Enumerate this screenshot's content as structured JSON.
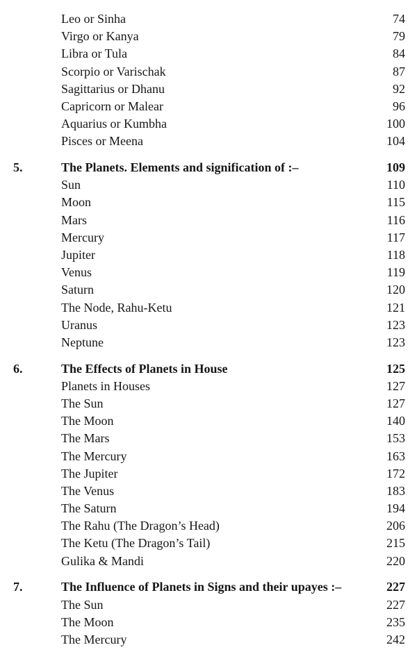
{
  "toc": [
    {
      "num": "",
      "title": "Leo or Sinha",
      "page": "74"
    },
    {
      "num": "",
      "title": "Virgo or Kanya",
      "page": "79"
    },
    {
      "num": "",
      "title": "Libra or Tula",
      "page": "84"
    },
    {
      "num": "",
      "title": "Scorpio or Varischak",
      "page": "87"
    },
    {
      "num": "",
      "title": "Sagittarius or Dhanu",
      "page": "92"
    },
    {
      "num": "",
      "title": "Capricorn or Malear",
      "page": "96"
    },
    {
      "num": "",
      "title": "Aquarius or Kumbha",
      "page": "100"
    },
    {
      "num": "",
      "title": "Pisces or Meena",
      "page": "104"
    },
    {
      "num": "5.",
      "title": "The Planets.  Elements and signification of :–",
      "page": "109",
      "section": true
    },
    {
      "num": "",
      "title": "Sun",
      "page": "110"
    },
    {
      "num": "",
      "title": "Moon",
      "page": "115"
    },
    {
      "num": "",
      "title": "Mars",
      "page": "116"
    },
    {
      "num": "",
      "title": "Mercury",
      "page": "117"
    },
    {
      "num": "",
      "title": "Jupiter",
      "page": "118"
    },
    {
      "num": "",
      "title": "Venus",
      "page": "119"
    },
    {
      "num": "",
      "title": "Saturn",
      "page": "120"
    },
    {
      "num": "",
      "title": "The Node, Rahu-Ketu",
      "page": "121"
    },
    {
      "num": "",
      "title": "Uranus",
      "page": "123"
    },
    {
      "num": "",
      "title": "Neptune",
      "page": "123"
    },
    {
      "num": "6.",
      "title": "The Effects of Planets in House",
      "page": "125",
      "section": true
    },
    {
      "num": "",
      "title": "Planets in Houses",
      "page": "127"
    },
    {
      "num": "",
      "title": "The Sun",
      "page": "127"
    },
    {
      "num": "",
      "title": "The Moon",
      "page": "140"
    },
    {
      "num": "",
      "title": "The Mars",
      "page": "153"
    },
    {
      "num": "",
      "title": "The Mercury",
      "page": "163"
    },
    {
      "num": "",
      "title": "The Jupiter",
      "page": "172"
    },
    {
      "num": "",
      "title": "The Venus",
      "page": "183"
    },
    {
      "num": "",
      "title": "The Saturn",
      "page": "194"
    },
    {
      "num": "",
      "title": "The Rahu (The Dragon’s Head)",
      "page": "206"
    },
    {
      "num": "",
      "title": "The Ketu (The Dragon’s Tail)",
      "page": "215"
    },
    {
      "num": "",
      "title": "Gulika & Mandi",
      "page": "220"
    },
    {
      "num": "7.",
      "title": "The Influence of Planets in Signs and their upayes :–",
      "page": "227",
      "section": true
    },
    {
      "num": "",
      "title": "The Sun",
      "page": "227"
    },
    {
      "num": "",
      "title": "The Moon",
      "page": "235"
    },
    {
      "num": "",
      "title": "The Mercury",
      "page": "242"
    }
  ]
}
